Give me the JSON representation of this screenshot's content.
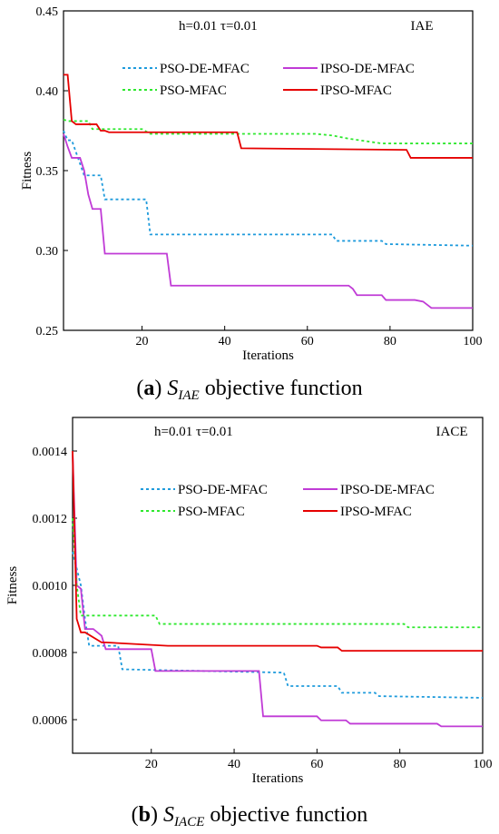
{
  "chart_data": [
    {
      "type": "line",
      "annotation_params": "h=0.01   τ=0.01",
      "annotation_metric": "IAE",
      "xlabel": "Iterations",
      "ylabel": "Fitness",
      "xlim": [
        1,
        100
      ],
      "ylim": [
        0.25,
        0.45
      ],
      "xticks": [
        20,
        40,
        60,
        80,
        100
      ],
      "xtick_labels": [
        "20",
        "40",
        "60",
        "80",
        "100"
      ],
      "yticks": [
        0.25,
        0.3,
        0.35,
        0.4,
        0.45
      ],
      "ytick_labels": [
        "0.25",
        "0.30",
        "0.35",
        "0.40",
        "0.45"
      ],
      "legend_position": "upper-center",
      "caption": {
        "letter": "a",
        "symbol": "S",
        "subscript": "IAE",
        "suffix": "objective function"
      },
      "series": [
        {
          "name": "PSO-DE-MFAC",
          "color": "#1f9bdc",
          "dash": "3,3",
          "x": [
            1,
            2,
            3,
            6,
            7,
            10,
            11,
            21,
            22,
            66,
            67,
            78,
            79,
            100
          ],
          "y": [
            0.375,
            0.369,
            0.369,
            0.347,
            0.347,
            0.347,
            0.332,
            0.332,
            0.31,
            0.31,
            0.306,
            0.306,
            0.304,
            0.303
          ]
        },
        {
          "name": "IPSO-DE-MFAC",
          "color": "#c03bd6",
          "dash": "",
          "x": [
            1,
            2,
            3,
            5,
            6,
            7,
            8,
            10,
            11,
            26,
            27,
            70,
            71,
            72,
            73,
            78,
            79,
            86,
            88,
            89,
            90,
            100
          ],
          "y": [
            0.373,
            0.365,
            0.358,
            0.358,
            0.35,
            0.335,
            0.326,
            0.326,
            0.298,
            0.298,
            0.278,
            0.278,
            0.276,
            0.272,
            0.272,
            0.272,
            0.269,
            0.269,
            0.268,
            0.266,
            0.264,
            0.264
          ]
        },
        {
          "name": "PSO-MFAC",
          "color": "#2ee82e",
          "dash": "3,3",
          "x": [
            1,
            2,
            3,
            7,
            8,
            20,
            22,
            62,
            66,
            70,
            78,
            100
          ],
          "y": [
            0.382,
            0.381,
            0.381,
            0.381,
            0.376,
            0.376,
            0.373,
            0.373,
            0.372,
            0.37,
            0.367,
            0.367
          ]
        },
        {
          "name": "IPSO-MFAC",
          "color": "#e60000",
          "dash": "",
          "x": [
            1,
            2,
            3,
            4,
            9,
            10,
            11,
            12,
            43,
            44,
            84,
            85,
            100
          ],
          "y": [
            0.41,
            0.41,
            0.381,
            0.379,
            0.379,
            0.375,
            0.375,
            0.374,
            0.374,
            0.364,
            0.363,
            0.358,
            0.358
          ]
        }
      ]
    },
    {
      "type": "line",
      "annotation_params": "h=0.01   τ=0.01",
      "annotation_metric": "IACE",
      "xlabel": "Iterations",
      "ylabel": "Fitness",
      "xlim": [
        1,
        100
      ],
      "ylim": [
        0.0005,
        0.0015
      ],
      "xticks": [
        20,
        40,
        60,
        80,
        100
      ],
      "xtick_labels": [
        "20",
        "40",
        "60",
        "80",
        "100"
      ],
      "yticks": [
        0.0006,
        0.0008,
        0.001,
        0.0012,
        0.0014
      ],
      "ytick_labels": [
        "0.0006",
        "0.0008",
        "0.0010",
        "0.0012",
        "0.0014"
      ],
      "legend_position": "upper-right",
      "caption": {
        "letter": "b",
        "symbol": "S",
        "subscript": "IACE",
        "suffix": "objective function"
      },
      "series": [
        {
          "name": "PSO-DE-MFAC",
          "color": "#1f9bdc",
          "dash": "3,3",
          "x": [
            1,
            2,
            3,
            4,
            5,
            12,
            13,
            52,
            53,
            65,
            66,
            74,
            75,
            100
          ],
          "y": [
            0.0011,
            0.00105,
            0.001,
            0.0009,
            0.00082,
            0.00082,
            0.00075,
            0.00074,
            0.0007,
            0.0007,
            0.00068,
            0.00068,
            0.00067,
            0.000665
          ]
        },
        {
          "name": "IPSO-DE-MFAC",
          "color": "#c03bd6",
          "dash": "",
          "x": [
            1,
            2,
            3,
            4,
            5,
            6,
            8,
            9,
            12,
            13,
            20,
            21,
            46,
            47,
            60,
            61,
            67,
            68,
            89,
            90,
            100
          ],
          "y": [
            0.0014,
            0.001,
            0.00099,
            0.00087,
            0.00087,
            0.00087,
            0.00085,
            0.00081,
            0.00081,
            0.00081,
            0.00081,
            0.000745,
            0.000745,
            0.00061,
            0.00061,
            0.000598,
            0.000598,
            0.000588,
            0.000588,
            0.00058,
            0.00058
          ]
        },
        {
          "name": "PSO-MFAC",
          "color": "#2ee82e",
          "dash": "3,3",
          "x": [
            1,
            2,
            3,
            21,
            22,
            81,
            82,
            100
          ],
          "y": [
            0.0012,
            0.001,
            0.00091,
            0.00091,
            0.000885,
            0.000885,
            0.000875,
            0.000875
          ]
        },
        {
          "name": "IPSO-MFAC",
          "color": "#e60000",
          "dash": "",
          "x": [
            1,
            2,
            3,
            4,
            8,
            9,
            24,
            25,
            60,
            61,
            65,
            66,
            100
          ],
          "y": [
            0.0014,
            0.0009,
            0.00086,
            0.00086,
            0.00083,
            0.00083,
            0.00082,
            0.00082,
            0.00082,
            0.000815,
            0.000815,
            0.000805,
            0.000805
          ]
        }
      ]
    }
  ]
}
